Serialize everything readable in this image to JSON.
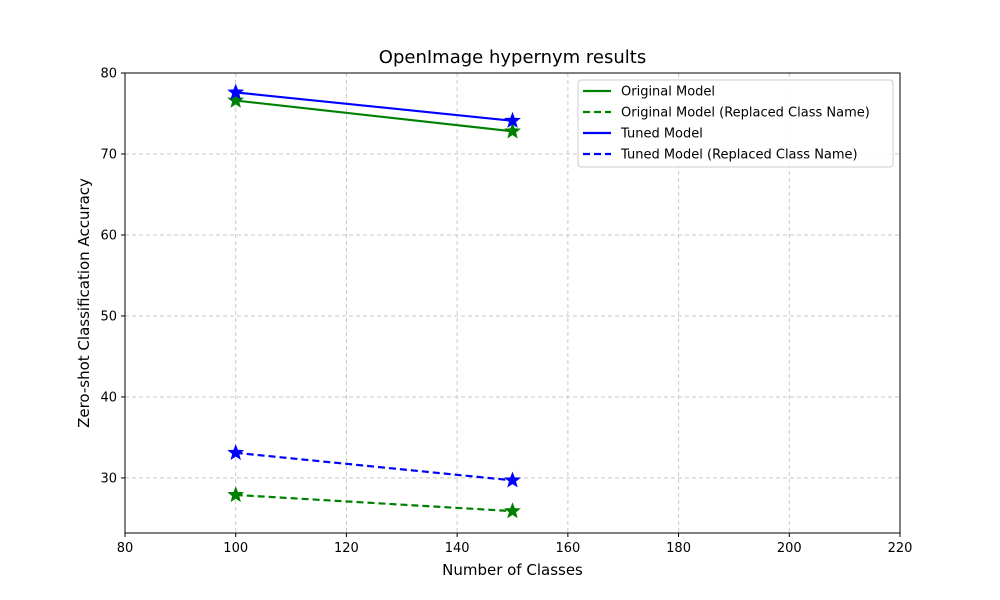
{
  "chart_data": {
    "type": "line",
    "title": "OpenImage hypernym results",
    "xlabel": "Number of Classes",
    "ylabel": "Zero-shot Classification Accuracy",
    "xlim": [
      80,
      220
    ],
    "ylim": [
      23.2,
      80
    ],
    "xticks": [
      80,
      100,
      120,
      140,
      160,
      180,
      200,
      220
    ],
    "yticks": [
      30,
      40,
      50,
      60,
      70,
      80
    ],
    "grid": true,
    "grid_style": "dashed",
    "legend_position": "top-right",
    "marker": "star",
    "series": [
      {
        "name": "Original Model",
        "color": "#008000",
        "dash": "solid",
        "x": [
          100,
          150
        ],
        "y": [
          76.6,
          72.8
        ]
      },
      {
        "name": "Original Model (Replaced Class Name)",
        "color": "#008000",
        "dash": "dashed",
        "x": [
          100,
          150
        ],
        "y": [
          27.9,
          25.9
        ]
      },
      {
        "name": "Tuned Model",
        "color": "#0000ff",
        "dash": "solid",
        "x": [
          100,
          150
        ],
        "y": [
          77.6,
          74.1
        ]
      },
      {
        "name": "Tuned Model (Replaced Class Name)",
        "color": "#0000ff",
        "dash": "dashed",
        "x": [
          100,
          150
        ],
        "y": [
          33.1,
          29.7
        ]
      }
    ]
  }
}
